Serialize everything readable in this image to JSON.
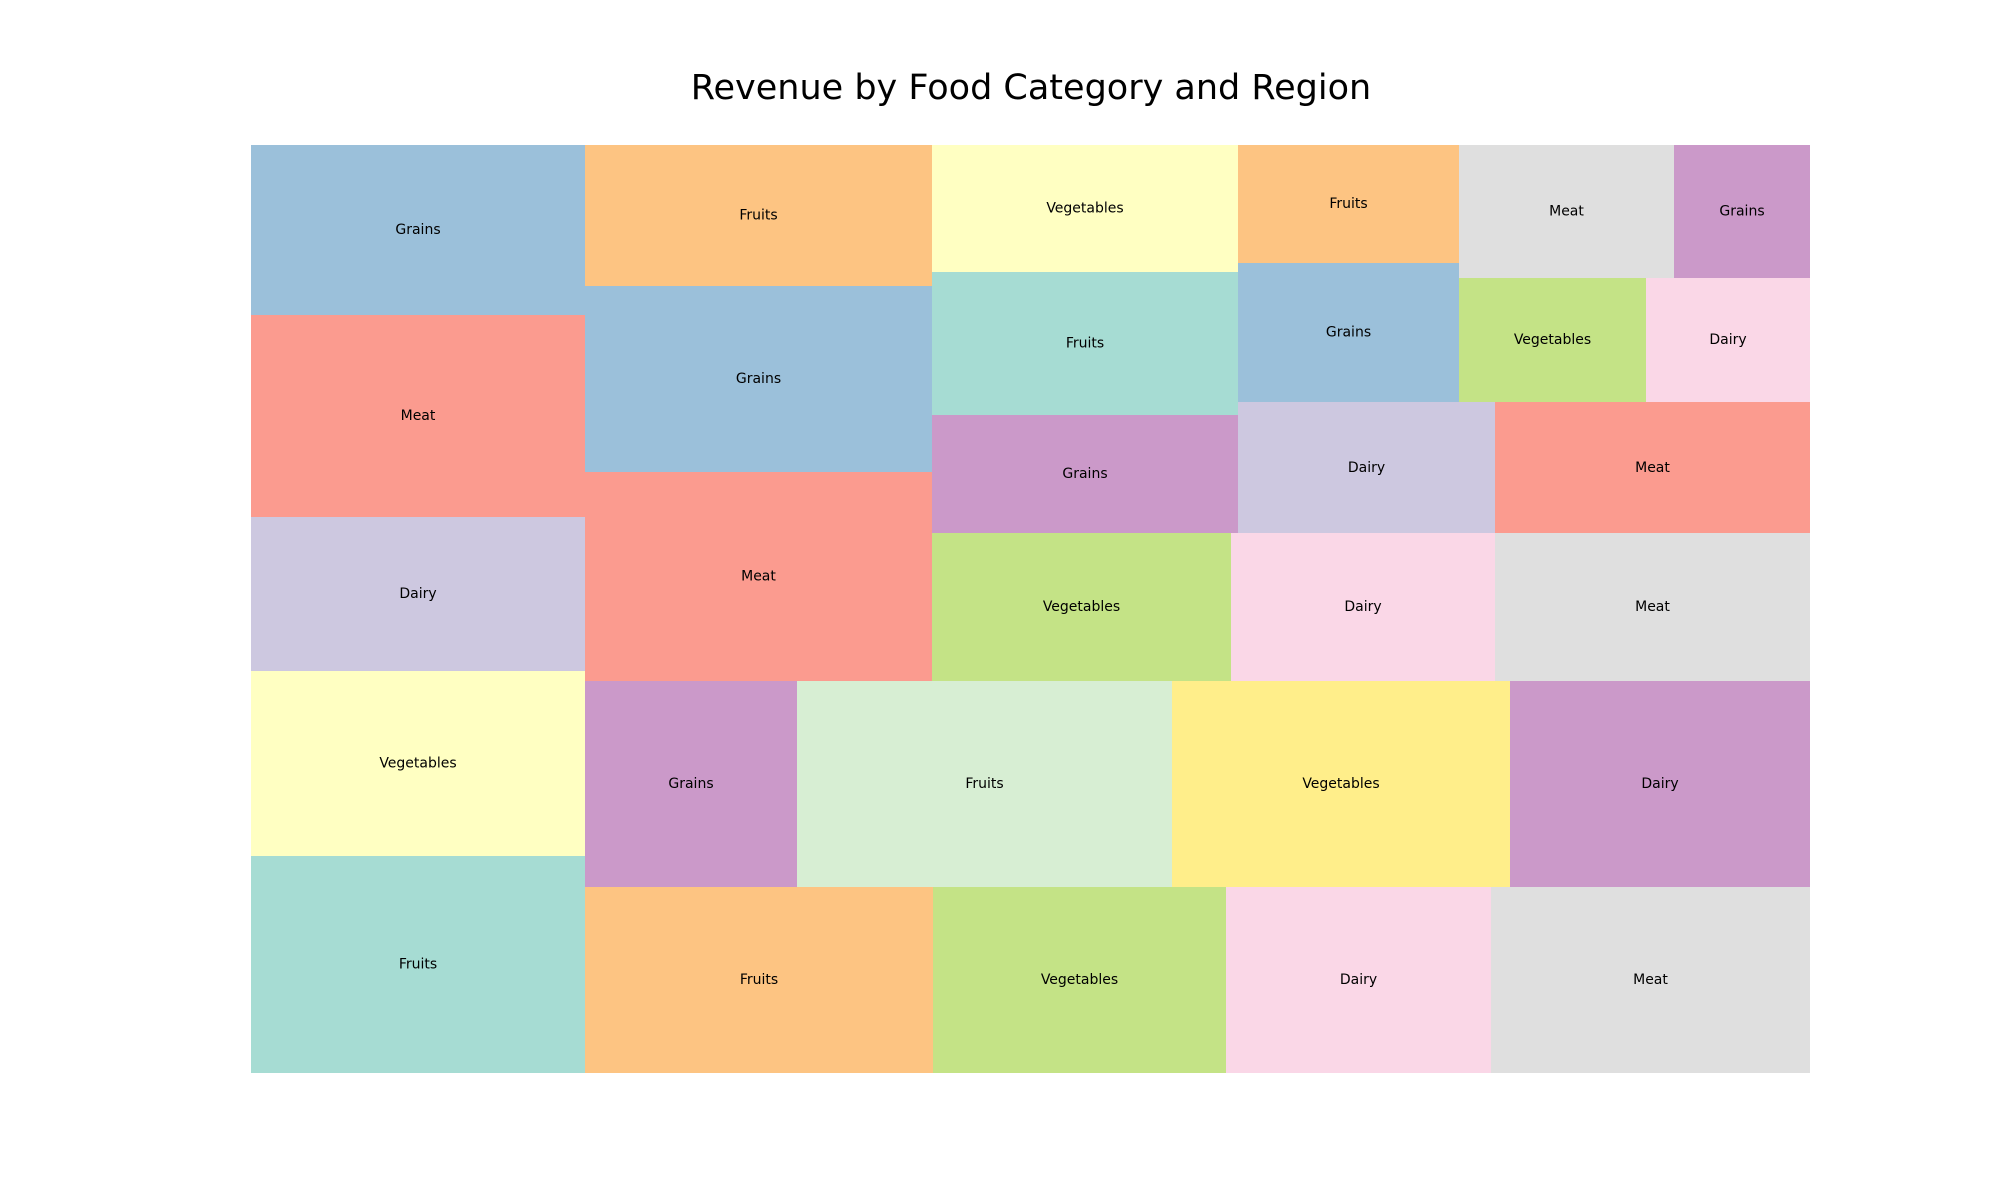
{
  "chart_data": {
    "type": "treemap",
    "title": "Revenue by Food Category and Region",
    "colors": {
      "teal": "#a6dcd3",
      "blue": "#9bc0da",
      "salmon": "#fb9b8f",
      "lavender": "#cdc8e0",
      "light_yellow": "#ffffc2",
      "orange": "#fdc482",
      "purple": "#cb99c9",
      "green": "#c4e386",
      "pink": "#fad7e7",
      "gray": "#dfdfdf",
      "mint": "#d7eed3",
      "yellow": "#ffee8a"
    },
    "tiles": [
      {
        "label": "Grains",
        "value": 8.8,
        "color": "blue"
      },
      {
        "label": "Meat",
        "value": 10.5,
        "color": "salmon"
      },
      {
        "label": "Dairy",
        "value": 8.0,
        "color": "lavender"
      },
      {
        "label": "Vegetables",
        "value": 9.6,
        "color": "light_yellow"
      },
      {
        "label": "Fruits",
        "value": 11.3,
        "color": "teal"
      },
      {
        "label": "Fruits",
        "value": 7.6,
        "color": "orange"
      },
      {
        "label": "Grains",
        "value": 10.0,
        "color": "blue"
      },
      {
        "label": "Meat",
        "value": 11.2,
        "color": "salmon"
      },
      {
        "label": "Vegetables",
        "value": 6.0,
        "color": "light_yellow"
      },
      {
        "label": "Fruits",
        "value": 6.8,
        "color": "teal"
      },
      {
        "label": "Grains",
        "value": 5.6,
        "color": "purple"
      },
      {
        "label": "Fruits",
        "value": 3.8,
        "color": "orange"
      },
      {
        "label": "Grains",
        "value": 4.6,
        "color": "blue"
      },
      {
        "label": "Meat",
        "value": 4.4,
        "color": "gray"
      },
      {
        "label": "Grains",
        "value": 2.8,
        "color": "purple"
      },
      {
        "label": "Vegetables",
        "value": 3.6,
        "color": "green"
      },
      {
        "label": "Dairy",
        "value": 3.0,
        "color": "pink"
      },
      {
        "label": "Dairy",
        "value": 5.2,
        "color": "lavender"
      },
      {
        "label": "Meat",
        "value": 6.4,
        "color": "salmon"
      },
      {
        "label": "Vegetables",
        "value": 6.8,
        "color": "green"
      },
      {
        "label": "Dairy",
        "value": 6.0,
        "color": "pink"
      },
      {
        "label": "Meat",
        "value": 7.2,
        "color": "gray"
      },
      {
        "label": "Grains",
        "value": 6.8,
        "color": "purple"
      },
      {
        "label": "Fruits",
        "value": 12.0,
        "color": "mint"
      },
      {
        "label": "Vegetables",
        "value": 10.8,
        "color": "yellow"
      },
      {
        "label": "Dairy",
        "value": 9.6,
        "color": "purple"
      },
      {
        "label": "Fruits",
        "value": 10.1,
        "color": "orange"
      },
      {
        "label": "Vegetables",
        "value": 8.5,
        "color": "green"
      },
      {
        "label": "Dairy",
        "value": 7.7,
        "color": "pink"
      },
      {
        "label": "Meat",
        "value": 9.3,
        "color": "gray"
      }
    ]
  }
}
